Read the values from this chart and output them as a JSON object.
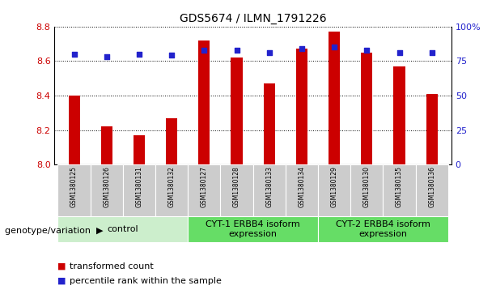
{
  "title": "GDS5674 / ILMN_1791226",
  "samples": [
    "GSM1380125",
    "GSM1380126",
    "GSM1380131",
    "GSM1380132",
    "GSM1380127",
    "GSM1380128",
    "GSM1380133",
    "GSM1380134",
    "GSM1380129",
    "GSM1380130",
    "GSM1380135",
    "GSM1380136"
  ],
  "transformed_counts": [
    8.4,
    8.22,
    8.17,
    8.27,
    8.72,
    8.62,
    8.47,
    8.67,
    8.77,
    8.65,
    8.57,
    8.41
  ],
  "percentile_ranks": [
    80,
    78,
    80,
    79,
    83,
    83,
    81,
    84,
    85,
    83,
    81,
    81
  ],
  "bar_color": "#cc0000",
  "dot_color": "#2222cc",
  "ylim_left": [
    8.0,
    8.8
  ],
  "ylim_right": [
    0,
    100
  ],
  "yticks_left": [
    8.0,
    8.2,
    8.4,
    8.6,
    8.8
  ],
  "yticks_right": [
    0,
    25,
    50,
    75,
    100
  ],
  "ytick_labels_right": [
    "0",
    "25",
    "50",
    "75",
    "100%"
  ],
  "groups": [
    {
      "label": "control",
      "start": 0,
      "end": 4,
      "color": "#cceecc"
    },
    {
      "label": "CYT-1 ERBB4 isoform\nexpression",
      "start": 4,
      "end": 8,
      "color": "#66dd66"
    },
    {
      "label": "CYT-2 ERBB4 isoform\nexpression",
      "start": 8,
      "end": 12,
      "color": "#66dd66"
    }
  ],
  "legend_items": [
    {
      "color": "#cc0000",
      "label": "transformed count"
    },
    {
      "color": "#2222cc",
      "label": "percentile rank within the sample"
    }
  ],
  "genotype_label": "genotype/variation",
  "bar_width": 0.35,
  "tick_label_color_left": "#cc0000",
  "tick_label_color_right": "#2222cc",
  "title_fontsize": 10,
  "sample_label_fontsize": 5.5,
  "group_fontsize": 8,
  "legend_fontsize": 8,
  "cell_color": "#cccccc",
  "cell_edge_color": "#ffffff"
}
